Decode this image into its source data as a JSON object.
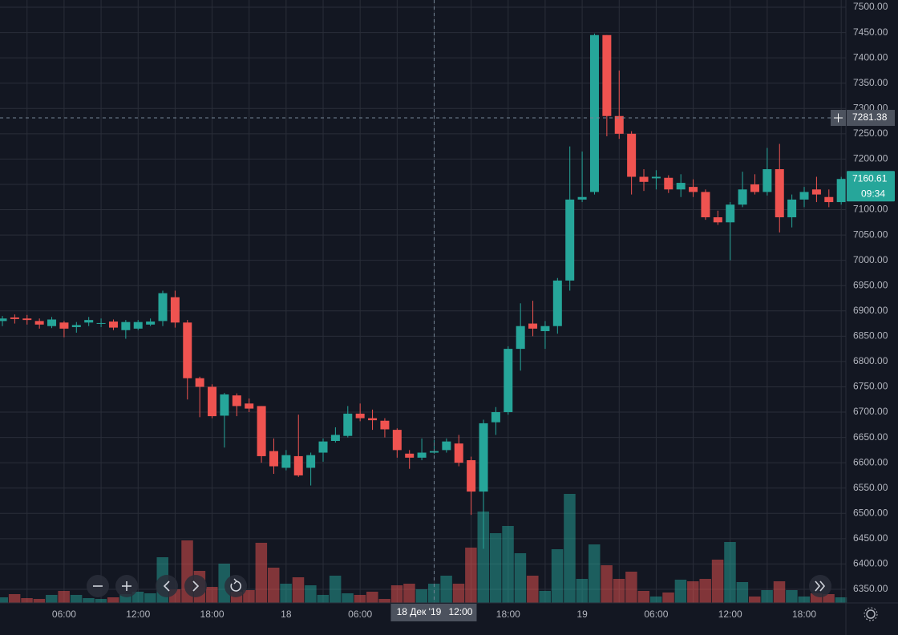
{
  "chart_data": {
    "type": "candlestick",
    "categories": [
      null,
      null,
      null,
      null,
      null,
      "06:00",
      null,
      null,
      null,
      null,
      null,
      "12:00",
      null,
      null,
      null,
      null,
      null,
      "18:00",
      null,
      null,
      null,
      null,
      null,
      "18",
      null,
      null,
      null,
      null,
      null,
      "06:00",
      null,
      null,
      null,
      null,
      null,
      null,
      null,
      null,
      null,
      null,
      null,
      "18:00",
      null,
      null,
      null,
      null,
      null,
      "19",
      null,
      null,
      null,
      null,
      null,
      "06:00",
      null,
      null,
      null,
      null,
      null,
      "12:00",
      null,
      null,
      null,
      null,
      null,
      "18:00",
      null,
      null,
      null
    ],
    "open": [
      6880,
      6887,
      6885,
      6880,
      6870,
      6877,
      6868,
      6877,
      6876,
      6879,
      6862,
      6865,
      6873,
      6880,
      6927,
      6877,
      6767,
      6750,
      6693,
      6733,
      6717,
      6712,
      6623,
      6590,
      6613,
      6590,
      6620,
      6643,
      6653,
      6697,
      6688,
      6683,
      6665,
      6618,
      6610,
      6620,
      6625,
      6638,
      6605,
      6543,
      6680,
      6700,
      6825,
      6875,
      6860,
      6870,
      6960,
      7120,
      7135,
      7445,
      7285,
      7250,
      7165,
      7162,
      7163,
      7140,
      7145,
      7135,
      7085,
      7075,
      7110,
      7150,
      7135,
      7180,
      7085,
      7120,
      7140,
      7125,
      7115
    ],
    "high": [
      6890,
      6893,
      6892,
      6885,
      6888,
      6880,
      6878,
      6888,
      6885,
      6883,
      6882,
      6882,
      6885,
      6940,
      6940,
      6882,
      6770,
      6755,
      6738,
      6737,
      6727,
      6712,
      6648,
      6625,
      6695,
      6620,
      6648,
      6670,
      6712,
      6717,
      6705,
      6688,
      6668,
      6625,
      6648,
      6645,
      6648,
      6655,
      6612,
      6685,
      6710,
      6830,
      6915,
      6920,
      6880,
      6965,
      7225,
      7215,
      7448,
      7445,
      7375,
      7255,
      7180,
      7178,
      7168,
      7170,
      7160,
      7140,
      7098,
      7115,
      7175,
      7170,
      7222,
      7230,
      7130,
      7145,
      7165,
      7140,
      7165
    ],
    "low": [
      6870,
      6875,
      6873,
      6865,
      6866,
      6848,
      6857,
      6870,
      6868,
      6862,
      6845,
      6862,
      6870,
      6870,
      6867,
      6725,
      6690,
      6688,
      6630,
      6692,
      6700,
      6600,
      6578,
      6585,
      6572,
      6555,
      6602,
      6640,
      6650,
      6682,
      6665,
      6650,
      6610,
      6588,
      6605,
      6618,
      6620,
      6593,
      6497,
      6430,
      6655,
      6695,
      6782,
      6850,
      6825,
      6855,
      6940,
      7115,
      7130,
      7245,
      7240,
      7130,
      7137,
      7140,
      7133,
      7125,
      7125,
      7080,
      7070,
      7000,
      7105,
      7130,
      7128,
      7055,
      7065,
      7105,
      7115,
      7105,
      7110
    ],
    "close": [
      6885,
      6884,
      6882,
      6873,
      6883,
      6865,
      6872,
      6882,
      6876,
      6867,
      6878,
      6878,
      6879,
      6935,
      6877,
      6767,
      6750,
      6692,
      6735,
      6712,
      6707,
      6613,
      6593,
      6615,
      6575,
      6615,
      6642,
      6655,
      6697,
      6688,
      6684,
      6666,
      6625,
      6610,
      6620,
      6623,
      6642,
      6600,
      6543,
      6678,
      6700,
      6825,
      6870,
      6865,
      6870,
      6960,
      7120,
      7125,
      7445,
      7285,
      7250,
      7165,
      7155,
      7165,
      7140,
      7153,
      7135,
      7085,
      7075,
      7110,
      7140,
      7135,
      7180,
      7085,
      7120,
      7135,
      7130,
      7115,
      7160.61
    ],
    "volume": [
      7,
      11,
      6,
      5,
      10,
      15,
      10,
      6,
      5,
      7,
      11,
      14,
      12,
      57,
      17,
      78,
      40,
      20,
      49,
      14,
      16,
      75,
      44,
      24,
      32,
      22,
      10,
      34,
      12,
      10,
      14,
      5,
      22,
      24,
      17,
      24,
      34,
      24,
      69,
      114,
      87,
      96,
      62,
      34,
      15,
      67,
      136,
      30,
      73,
      47,
      30,
      39,
      15,
      8,
      13,
      29,
      27,
      30,
      54,
      76,
      26,
      8,
      16,
      27,
      16,
      8,
      12,
      11,
      7
    ],
    "volume_ylim": [
      0,
      752
    ],
    "up_color": "#26a69a",
    "down_color": "#ef5350",
    "ylim": [
      6323,
      7514.3
    ],
    "yticks": [
      {
        "value": 6350,
        "label": "6350.00"
      },
      {
        "value": 6400,
        "label": "6400.00"
      },
      {
        "value": 6450,
        "label": "6450.00"
      },
      {
        "value": 6500,
        "label": "6500.00"
      },
      {
        "value": 6550,
        "label": "6550.00"
      },
      {
        "value": 6600,
        "label": "6600.00"
      },
      {
        "value": 6650,
        "label": "6650.00"
      },
      {
        "value": 6700,
        "label": "6700.00"
      },
      {
        "value": 6750,
        "label": "6750.00"
      },
      {
        "value": 6800,
        "label": "6800.00"
      },
      {
        "value": 6850,
        "label": "6850.00"
      },
      {
        "value": 6900,
        "label": "6900.00"
      },
      {
        "value": 6950,
        "label": "6950.00"
      },
      {
        "value": 7000,
        "label": "7000.00"
      },
      {
        "value": 7050,
        "label": "7050.00"
      },
      {
        "value": 7100,
        "label": "7100.00"
      },
      {
        "value": 7150,
        "label": "7150.00"
      },
      {
        "value": 7200,
        "label": "7200.00"
      },
      {
        "value": 7250,
        "label": "7250.00"
      },
      {
        "value": 7300,
        "label": "7300.00"
      },
      {
        "value": 7350,
        "label": "7350.00"
      },
      {
        "value": 7400,
        "label": "7400.00"
      },
      {
        "value": 7450,
        "label": "7450.00"
      },
      {
        "value": 7500,
        "label": "7500.00"
      }
    ],
    "grid": true,
    "crosshair": {
      "date": "18 Дек '19",
      "time": "12:00",
      "category": 35,
      "price": 7281.38
    },
    "countdown": "09:34"
  }
}
